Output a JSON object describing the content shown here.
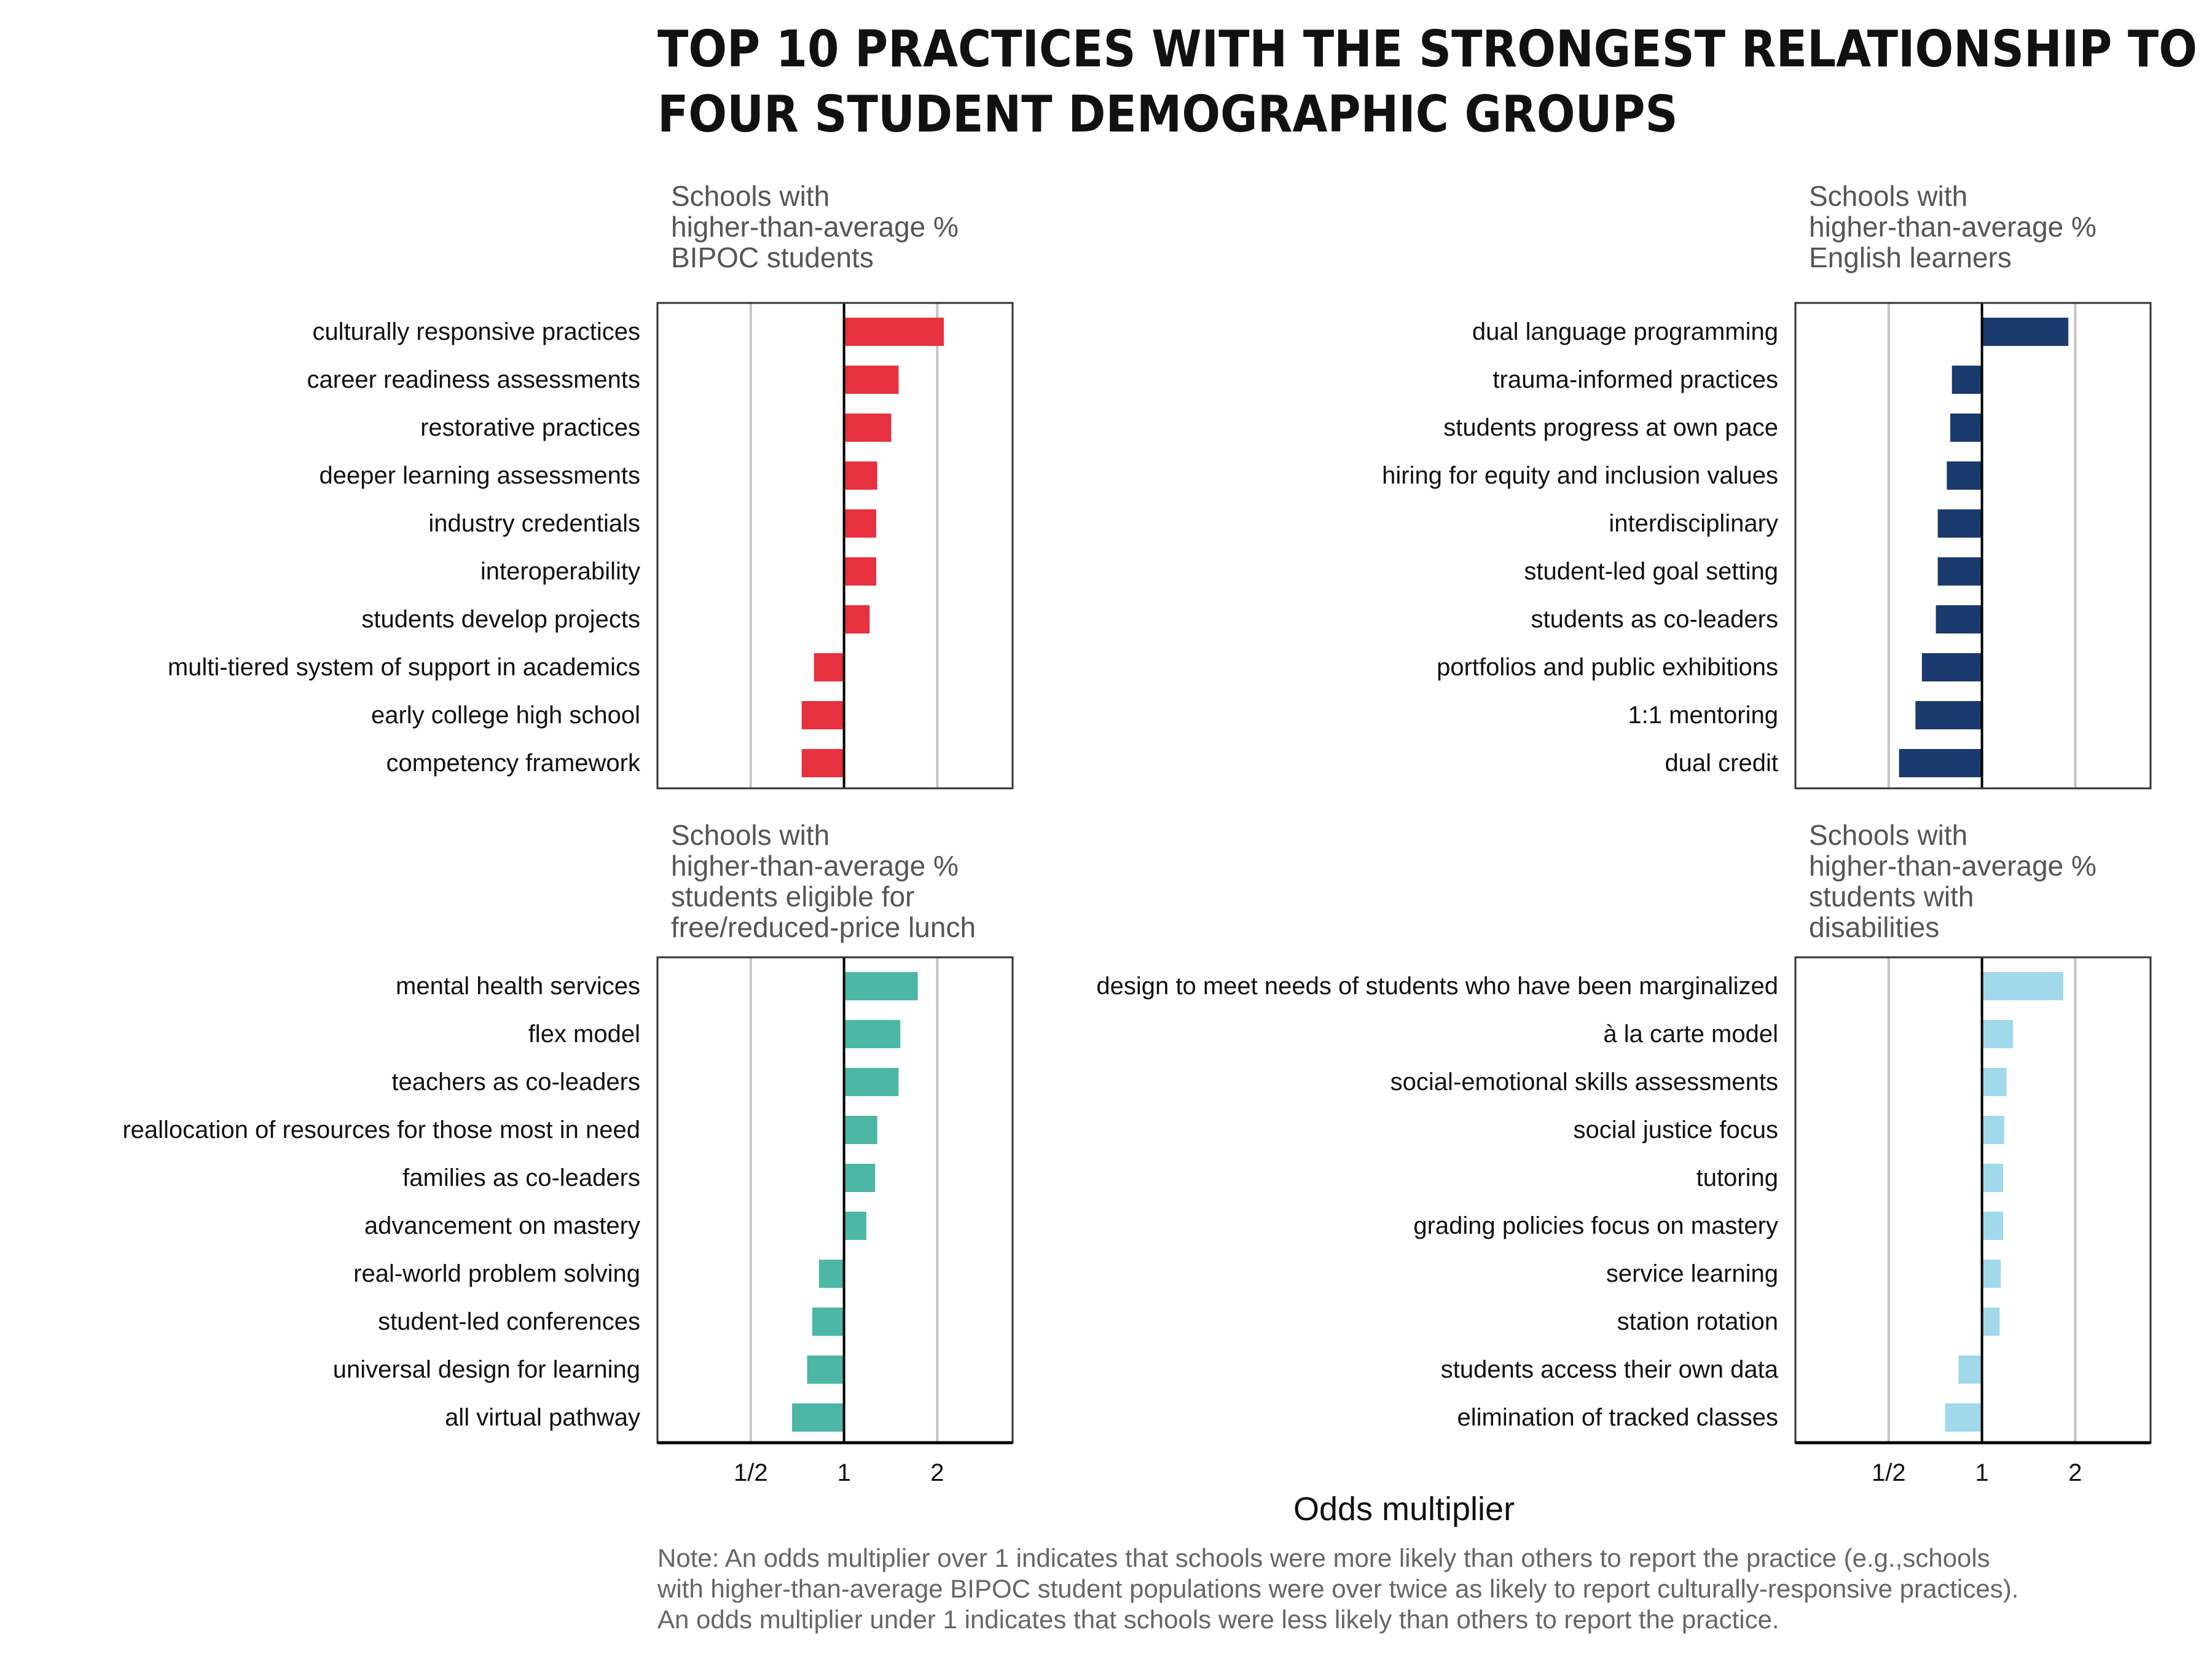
{
  "title_lines": [
    "TOP 10 PRACTICES WITH THE STRONGEST RELATIONSHIP TO",
    "FOUR STUDENT DEMOGRAPHIC GROUPS"
  ],
  "xlabel": "Odds multiplier",
  "note_lines": [
    "Note: An odds multiplier over 1 indicates that schools were more likely than others to report the practice (e.g.,schools",
    "with higher-than-average BIPOC student populations were over twice as likely to report culturally-responsive practices).",
    "An odds multiplier under 1 indicates that schools were less likely than others to report the practice."
  ],
  "chart_data": [
    {
      "type": "bar",
      "orientation": "horizontal",
      "x_scale": "log2",
      "xlim": [
        0.25,
        3.5
      ],
      "xticks": [
        {
          "value": 0.5,
          "label": "1/2"
        },
        {
          "value": 1,
          "label": "1"
        },
        {
          "value": 2,
          "label": "2"
        }
      ],
      "grid": true,
      "color": "#e8313f",
      "subtitle_lines": [
        "Schools with",
        "higher-than-average %",
        "BIPOC students"
      ],
      "categories": [
        "culturally responsive practices",
        "career readiness assessments",
        "restorative practices",
        "deeper learning assessments",
        "industry credentials",
        "interoperability",
        "students develop projects",
        "multi-tiered system of support in academics",
        "early college high school",
        "competency framework"
      ],
      "values": [
        2.1,
        1.5,
        1.42,
        1.28,
        1.27,
        1.27,
        1.21,
        0.8,
        0.73,
        0.73
      ]
    },
    {
      "type": "bar",
      "orientation": "horizontal",
      "x_scale": "log2",
      "xlim": [
        0.25,
        3.5
      ],
      "xticks": [
        {
          "value": 0.5,
          "label": "1/2"
        },
        {
          "value": 1,
          "label": "1"
        },
        {
          "value": 2,
          "label": "2"
        }
      ],
      "grid": true,
      "color": "#1b3a6e",
      "subtitle_lines": [
        "Schools with",
        "higher-than-average %",
        "English learners"
      ],
      "categories": [
        "dual language programming",
        "trauma-informed practices",
        "students progress at own pace",
        "hiring for equity and inclusion values",
        "interdisciplinary",
        "student-led goal setting",
        "students as co-leaders",
        "portfolios and public exhibitions",
        "1:1 mentoring",
        "dual credit"
      ],
      "values": [
        1.9,
        0.8,
        0.79,
        0.77,
        0.72,
        0.72,
        0.71,
        0.64,
        0.61,
        0.54
      ]
    },
    {
      "type": "bar",
      "orientation": "horizontal",
      "x_scale": "log2",
      "xlim": [
        0.25,
        3.5
      ],
      "xticks": [
        {
          "value": 0.5,
          "label": "1/2"
        },
        {
          "value": 1,
          "label": "1"
        },
        {
          "value": 2,
          "label": "2"
        }
      ],
      "grid": true,
      "color": "#4cb7a5",
      "subtitle_lines": [
        "Schools with",
        "higher-than-average %",
        "students eligible for",
        "free/reduced-price lunch"
      ],
      "categories": [
        "mental health services",
        "flex model",
        "teachers as co-leaders",
        "reallocation of resources for those most in need",
        "families as co-leaders",
        "advancement on mastery",
        "real-world problem solving",
        "student-led conferences",
        "universal design for learning",
        "all virtual pathway"
      ],
      "values": [
        1.73,
        1.52,
        1.5,
        1.28,
        1.26,
        1.18,
        0.83,
        0.79,
        0.76,
        0.68
      ]
    },
    {
      "type": "bar",
      "orientation": "horizontal",
      "x_scale": "log2",
      "xlim": [
        0.25,
        3.5
      ],
      "xticks": [
        {
          "value": 0.5,
          "label": "1/2"
        },
        {
          "value": 1,
          "label": "1"
        },
        {
          "value": 2,
          "label": "2"
        }
      ],
      "grid": true,
      "color": "#a1d8ea",
      "subtitle_lines": [
        "Schools with",
        "higher-than-average %",
        "students with",
        "disabilities"
      ],
      "categories": [
        "design to meet needs of students who have been marginalized",
        "à la carte model",
        "social-emotional skills assessments",
        "social justice focus",
        "tutoring",
        "grading policies focus on mastery",
        "service learning",
        "station rotation",
        "students access their own data",
        "elimination of tracked classes"
      ],
      "values": [
        1.83,
        1.26,
        1.2,
        1.18,
        1.17,
        1.17,
        1.15,
        1.14,
        0.84,
        0.76
      ]
    }
  ]
}
